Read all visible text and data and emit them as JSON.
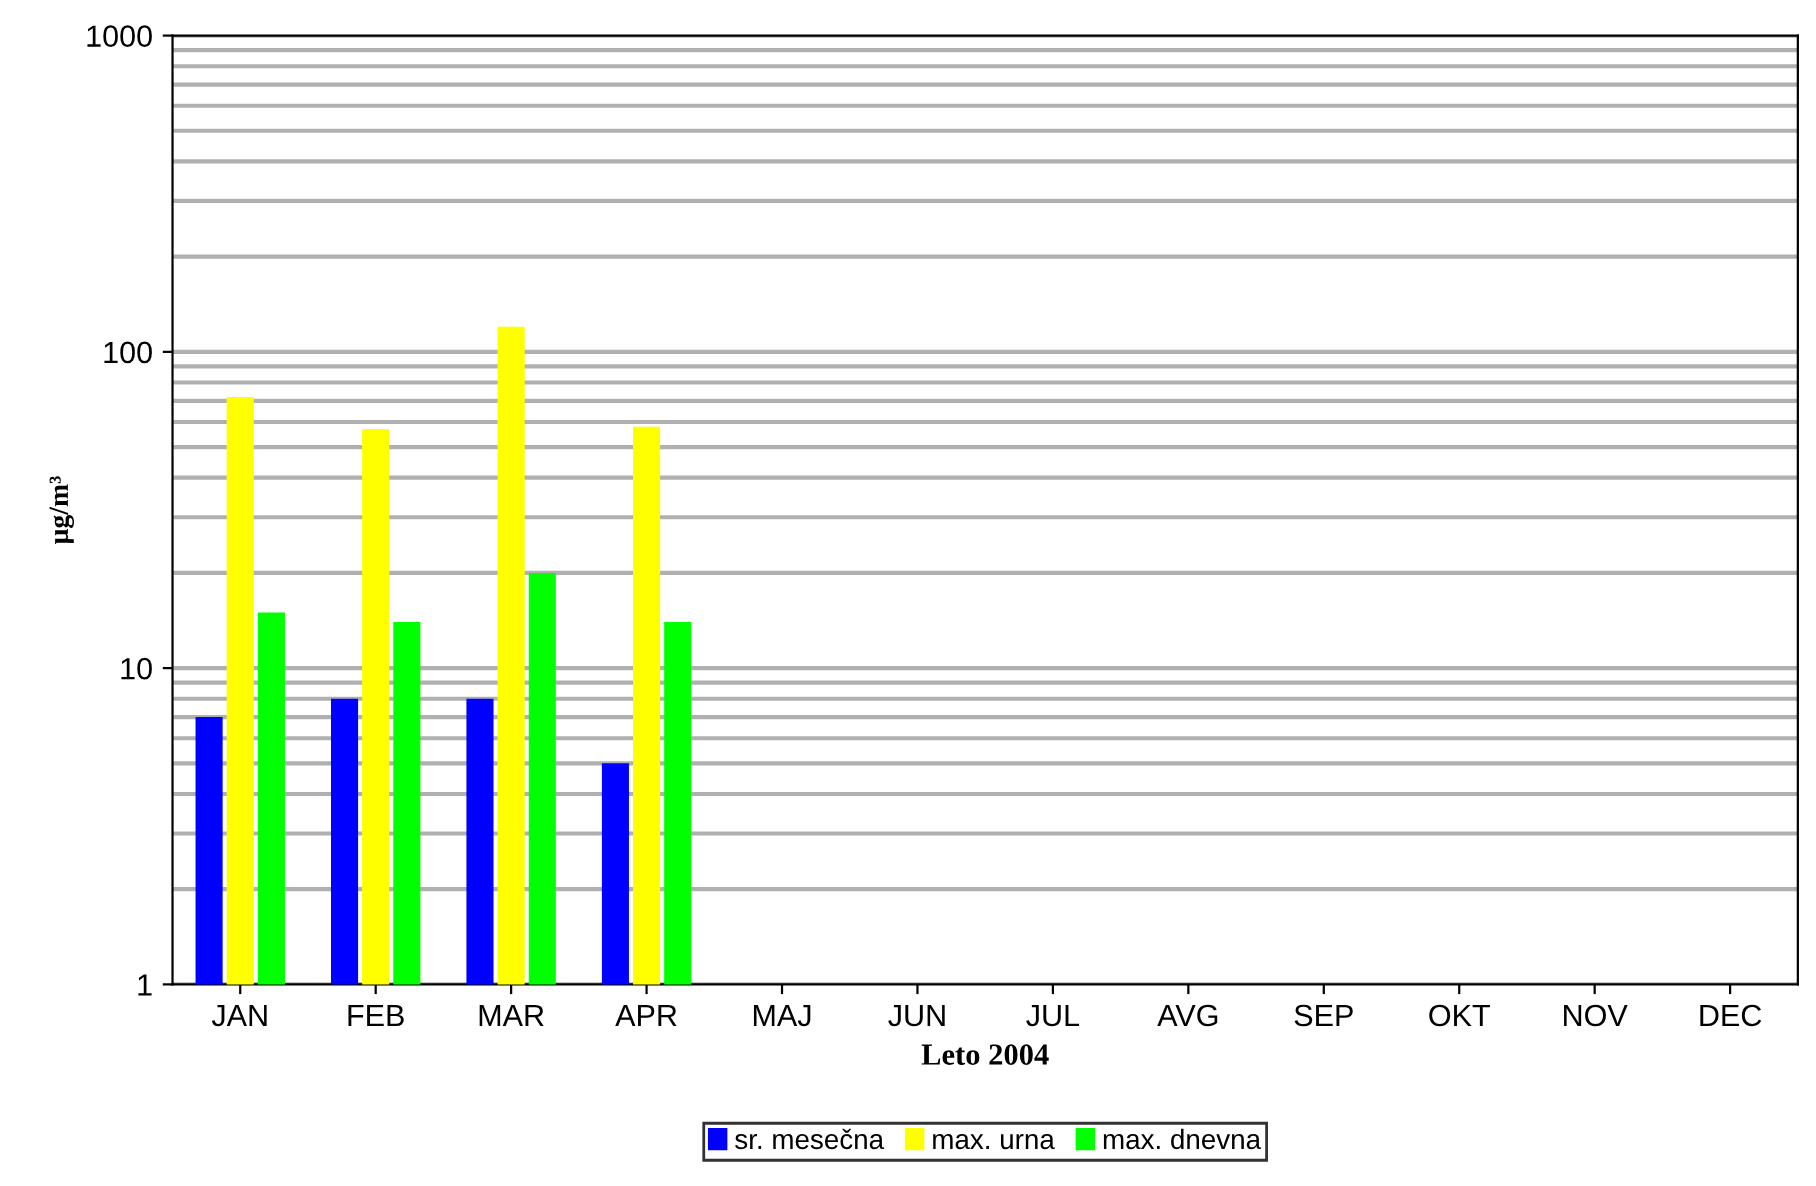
{
  "chart_data": {
    "type": "bar",
    "xlabel": "Leto 2004",
    "ylabel": "μg/m³",
    "categories": [
      "JAN",
      "FEB",
      "MAR",
      "APR",
      "MAJ",
      "JUN",
      "JUL",
      "AVG",
      "SEP",
      "OKT",
      "NOV",
      "DEC"
    ],
    "series": [
      {
        "name": "sr. mesečna",
        "color": "#0000ff",
        "values": [
          7,
          8,
          8,
          5,
          null,
          null,
          null,
          null,
          null,
          null,
          null,
          null
        ]
      },
      {
        "name": "max. urna",
        "color": "#ffff00",
        "values": [
          72,
          57,
          120,
          58,
          null,
          null,
          null,
          null,
          null,
          null,
          null,
          null
        ]
      },
      {
        "name": "max. dnevna",
        "color": "#00ff00",
        "values": [
          15,
          14,
          20,
          14,
          null,
          null,
          null,
          null,
          null,
          null,
          null,
          null
        ]
      }
    ],
    "log": true,
    "ylim": [
      1,
      1000
    ],
    "yticks": [
      1,
      {
        "value": 2,
        "label": null
      },
      {
        "value": 3,
        "label": null
      },
      {
        "value": 4,
        "label": null
      },
      {
        "value": 5,
        "label": null
      },
      {
        "value": 6,
        "label": null
      },
      {
        "value": 7,
        "label": null
      },
      {
        "value": 8,
        "label": null
      },
      {
        "value": 9,
        "label": null
      },
      10,
      {
        "value": 20,
        "label": null
      },
      {
        "value": 30,
        "label": null
      },
      {
        "value": 40,
        "label": null
      },
      {
        "value": 50,
        "label": null
      },
      {
        "value": 60,
        "label": null
      },
      {
        "value": 70,
        "label": null
      },
      {
        "value": 80,
        "label": null
      },
      {
        "value": 90,
        "label": null
      },
      100,
      {
        "value": 200,
        "label": null
      },
      {
        "value": 300,
        "label": null
      },
      {
        "value": 400,
        "label": null
      },
      {
        "value": 500,
        "label": null
      },
      {
        "value": 600,
        "label": null
      },
      {
        "value": 700,
        "label": null
      },
      {
        "value": 800,
        "label": null
      },
      {
        "value": 900,
        "label": null
      },
      1000
    ],
    "grid": "y",
    "legend": "bottom"
  }
}
